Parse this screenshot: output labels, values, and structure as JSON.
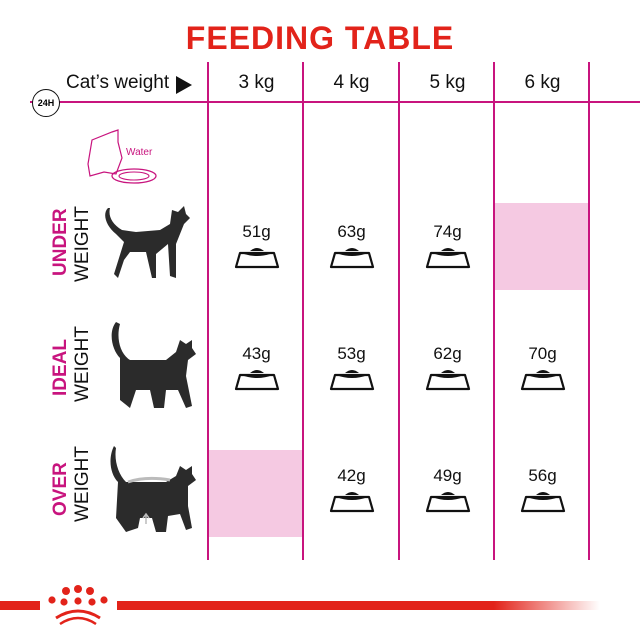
{
  "title": "FEEDING TABLE",
  "header": {
    "cats_weight_label": "Cat’s weight",
    "clock_label": "24H",
    "columns": [
      "3 kg",
      "4 kg",
      "5 kg",
      "6 kg"
    ]
  },
  "water_label": "Water",
  "rows": [
    {
      "label_top": "UNDER",
      "label_bottom": "WEIGHT",
      "amounts": [
        "51g",
        "63g",
        "74g",
        null
      ]
    },
    {
      "label_top": "IDEAL",
      "label_bottom": "WEIGHT",
      "amounts": [
        "43g",
        "53g",
        "62g",
        "70g"
      ]
    },
    {
      "label_top": "OVER",
      "label_bottom": "WEIGHT",
      "amounts": [
        null,
        "42g",
        "49g",
        "56g"
      ]
    }
  ],
  "colors": {
    "title": "#e2231a",
    "grid": "#c8147e",
    "empty_cell": "#f5c9e2",
    "brand": "#e2231a"
  }
}
